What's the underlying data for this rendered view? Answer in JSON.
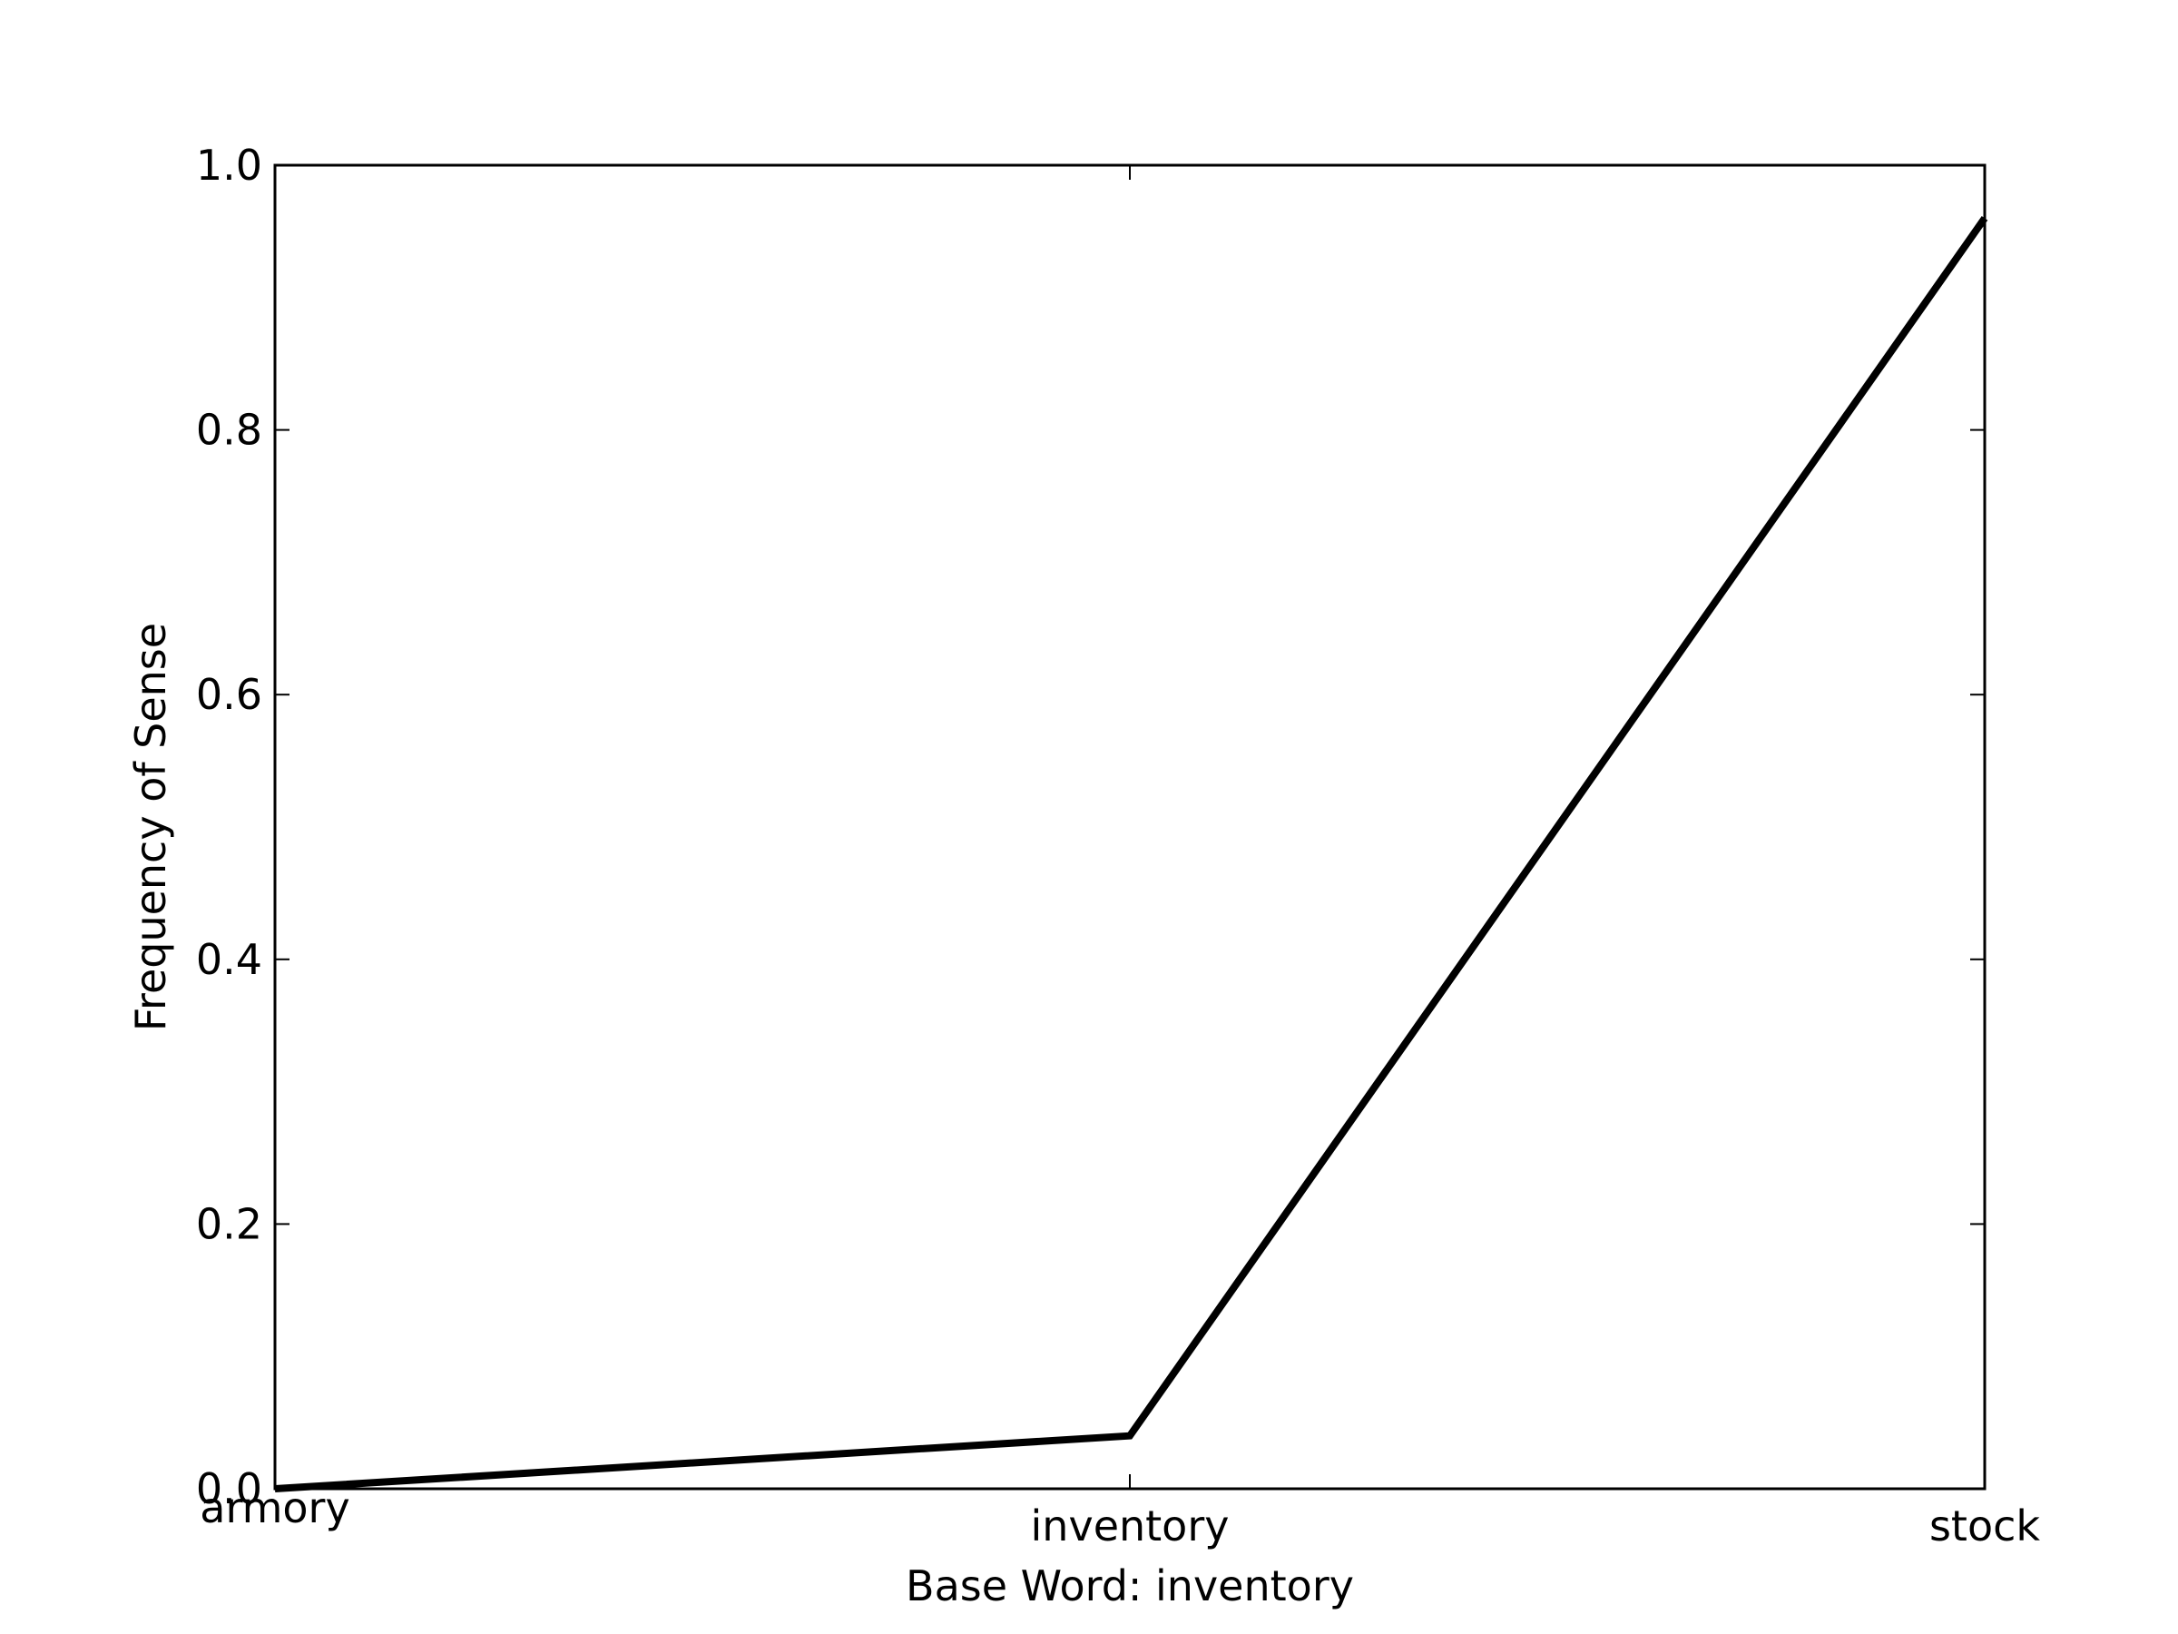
{
  "chart_data": {
    "type": "line",
    "categories": [
      "armory",
      "inventory",
      "stock"
    ],
    "series": [
      {
        "values": [
          0.0,
          0.04,
          0.96
        ]
      }
    ],
    "title": "",
    "xlabel": "Base Word: inventory",
    "ylabel": "Frequency of Sense",
    "ylim": [
      0,
      1.0
    ],
    "yticks": [
      "0.0",
      "0.2",
      "0.4",
      "0.6",
      "0.8",
      "1.0"
    ],
    "grid": false,
    "line_color": "#000000"
  }
}
